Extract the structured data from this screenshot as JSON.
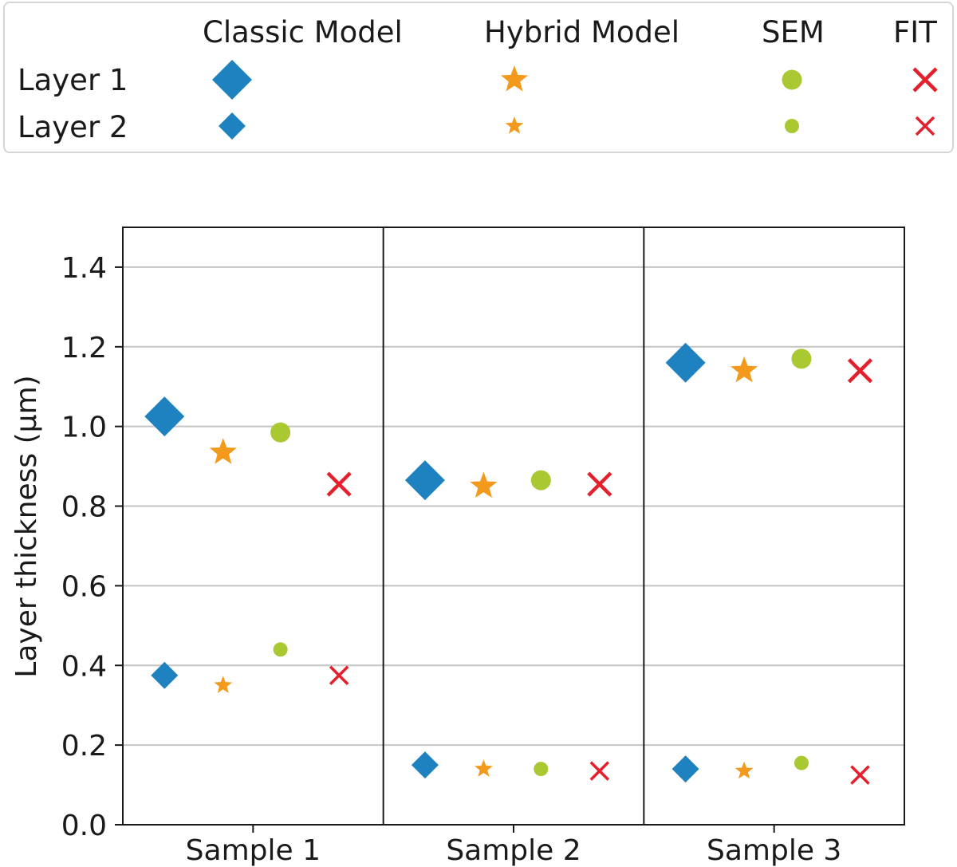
{
  "legend": {
    "columns": [
      "Classic Model",
      "Hybrid Model",
      "SEM",
      "FIT"
    ],
    "rows": [
      "Layer 1",
      "Layer 2"
    ]
  },
  "chart_data": {
    "type": "scatter",
    "categories": [
      "Sample 1",
      "Sample 2",
      "Sample 3"
    ],
    "ylabel": "Layer thickness (µm)",
    "xlabel": "",
    "ylim": [
      0.0,
      1.5
    ],
    "yticks": [
      0.0,
      0.2,
      0.4,
      0.6,
      0.8,
      1.0,
      1.2,
      1.4
    ],
    "grid": "horizontal",
    "legend_position": "top",
    "methods": [
      {
        "name": "Classic Model",
        "marker": "diamond",
        "color": "#1f82c0"
      },
      {
        "name": "Hybrid Model",
        "marker": "star",
        "color": "#f39a1d"
      },
      {
        "name": "SEM",
        "marker": "circle",
        "color": "#a9c832"
      },
      {
        "name": "FIT",
        "marker": "x",
        "color": "#e3202b"
      }
    ],
    "series": [
      {
        "layer": "Layer 1",
        "method": "Classic Model",
        "values": [
          1.025,
          0.865,
          1.16
        ]
      },
      {
        "layer": "Layer 1",
        "method": "Hybrid Model",
        "values": [
          0.935,
          0.85,
          1.14
        ]
      },
      {
        "layer": "Layer 1",
        "method": "SEM",
        "values": [
          0.985,
          0.865,
          1.17
        ]
      },
      {
        "layer": "Layer 1",
        "method": "FIT",
        "values": [
          0.855,
          0.855,
          1.14
        ]
      },
      {
        "layer": "Layer 2",
        "method": "Classic Model",
        "values": [
          0.375,
          0.15,
          0.14
        ]
      },
      {
        "layer": "Layer 2",
        "method": "Hybrid Model",
        "values": [
          0.35,
          0.14,
          0.135
        ]
      },
      {
        "layer": "Layer 2",
        "method": "SEM",
        "values": [
          0.44,
          0.14,
          0.155
        ]
      },
      {
        "layer": "Layer 2",
        "method": "FIT",
        "values": [
          0.375,
          0.135,
          0.125
        ]
      }
    ]
  }
}
